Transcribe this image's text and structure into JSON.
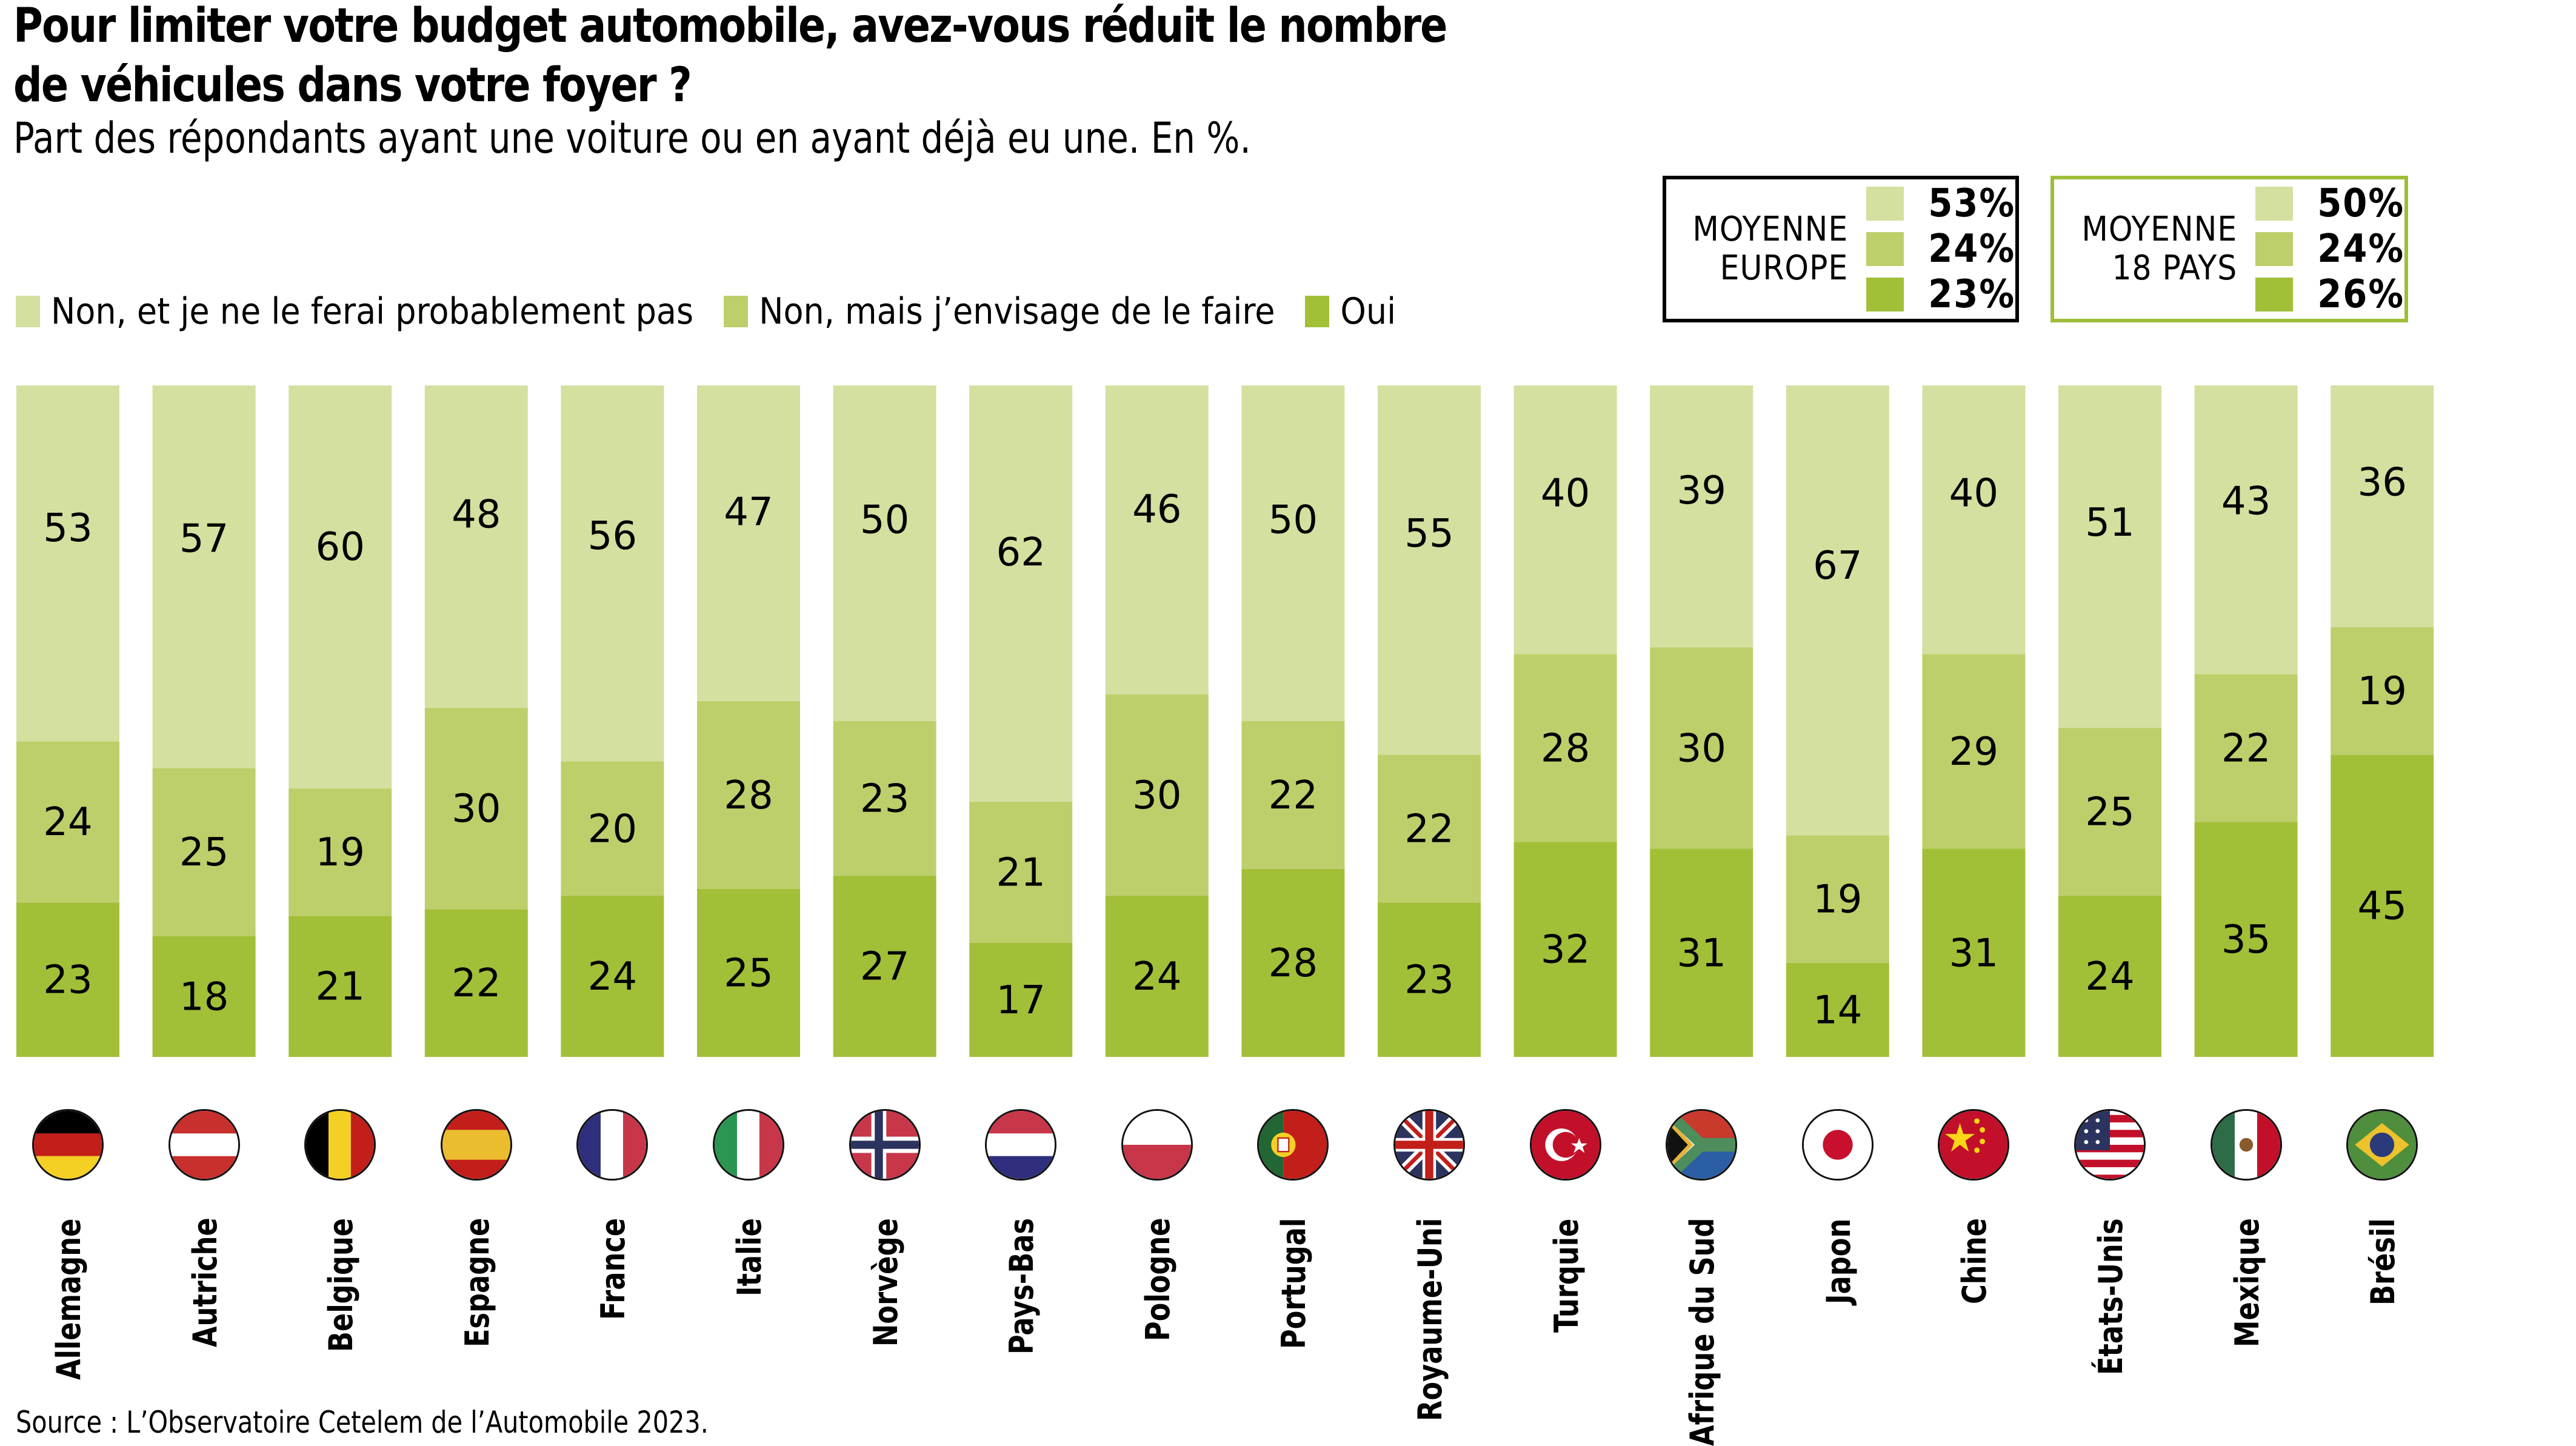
{
  "title_line1": "Pour limiter votre budget automobile, avez-vous réduit le nombre",
  "title_line2": "de véhicules dans votre foyer ?",
  "subtitle": "Part des répondants ayant une voiture ou en ayant déjà eu une. En %.",
  "colors": {
    "non_jamais": "#d3e09f",
    "non_envisage": "#bdcf6b",
    "oui": "#a2bf38",
    "box_europe_border": "#000000",
    "box_18_border": "#9fbe38"
  },
  "legend": [
    {
      "label": "Non, et je ne le ferai probablement pas",
      "color": "#d3e09f"
    },
    {
      "label": "Non, mais j’envisage de le faire",
      "color": "#bdcf6b"
    },
    {
      "label": "Oui",
      "color": "#a2bf38"
    }
  ],
  "averages": [
    {
      "label_line1": "MOYENNE",
      "label_line2": "EUROPE",
      "values": [
        "53%",
        "24%",
        "23%"
      ]
    },
    {
      "label_line1": "MOYENNE",
      "label_line2": "18 PAYS",
      "values": [
        "50%",
        "24%",
        "26%"
      ]
    }
  ],
  "source": "Source : L’Observatoire Cetelem de l’Automobile 2023.",
  "chart_data": {
    "type": "bar",
    "stacked": true,
    "orientation": "vertical",
    "title": "Pour limiter votre budget automobile, avez-vous réduit le nombre de véhicules dans votre foyer ?",
    "subtitle": "Part des répondants ayant une voiture ou en ayant déjà eu une. En %.",
    "xlabel": "",
    "ylabel": "%",
    "ylim": [
      0,
      100
    ],
    "grid": false,
    "legend_position": "top-left",
    "categories": [
      "Allemagne",
      "Autriche",
      "Belgique",
      "Espagne",
      "France",
      "Italie",
      "Norvège",
      "Pays-Bas",
      "Pologne",
      "Portugal",
      "Royaume-Uni",
      "Turquie",
      "Afrique du Sud",
      "Japon",
      "Chine",
      "États-Unis",
      "Mexique",
      "Brésil"
    ],
    "flags": [
      "flag-germany",
      "flag-austria",
      "flag-belgium",
      "flag-spain",
      "flag-france",
      "flag-italy",
      "flag-norway",
      "flag-netherlands",
      "flag-poland",
      "flag-portugal",
      "flag-uk",
      "flag-turkey",
      "flag-south-africa",
      "flag-japan",
      "flag-china",
      "flag-usa",
      "flag-mexico",
      "flag-brazil"
    ],
    "series": [
      {
        "name": "Oui",
        "values": [
          23,
          18,
          21,
          22,
          24,
          25,
          27,
          17,
          24,
          28,
          23,
          32,
          31,
          14,
          31,
          24,
          35,
          45
        ]
      },
      {
        "name": "Non, mais j’envisage de le faire",
        "values": [
          24,
          25,
          19,
          30,
          20,
          28,
          23,
          21,
          30,
          22,
          22,
          28,
          30,
          19,
          29,
          25,
          22,
          19
        ]
      },
      {
        "name": "Non, et je ne le ferai probablement pas",
        "values": [
          53,
          57,
          60,
          48,
          56,
          47,
          50,
          62,
          46,
          50,
          55,
          40,
          39,
          67,
          40,
          51,
          43,
          36
        ]
      }
    ]
  }
}
